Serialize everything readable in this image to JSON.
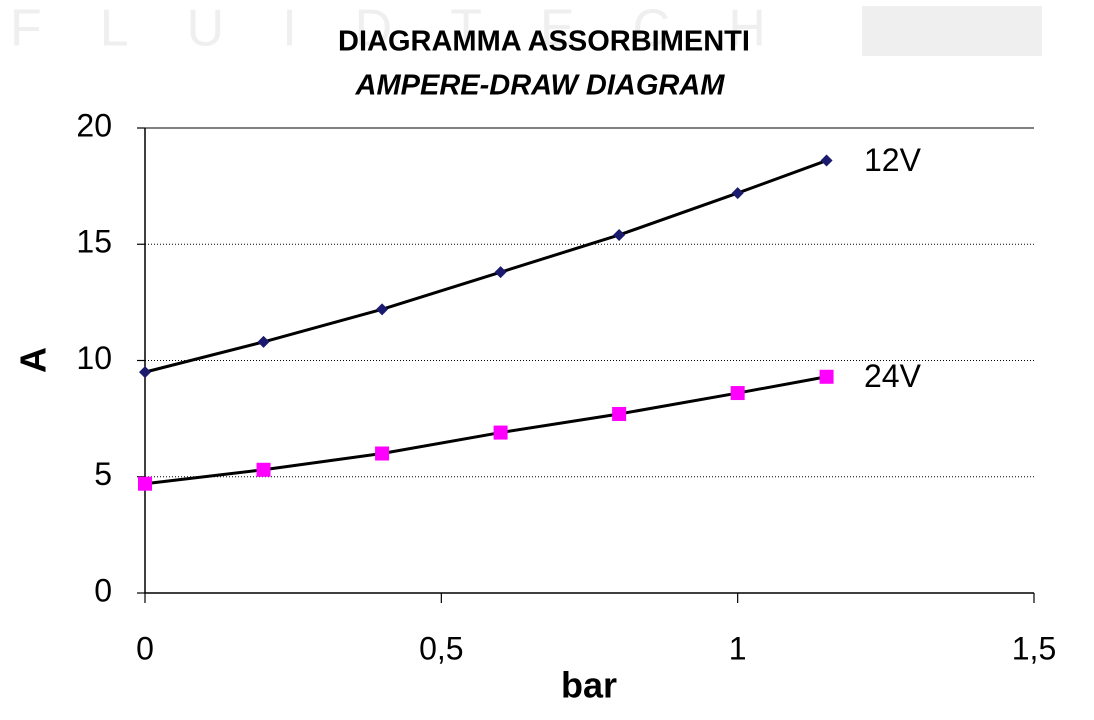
{
  "watermark": "FLUIDTECH",
  "chart_data": {
    "type": "line",
    "title": "DIAGRAMMA ASSORBIMENTI",
    "subtitle": "AMPERE-DRAW DIAGRAM",
    "x_label": "bar",
    "y_label": "A",
    "x": [
      0,
      0.2,
      0.4,
      0.6,
      0.8,
      1,
      1.15
    ],
    "series": [
      {
        "name": "12V",
        "color": "#1a1a6e",
        "marker": "diamond",
        "values": [
          9.5,
          10.8,
          12.2,
          13.8,
          15.4,
          17.2,
          18.6
        ]
      },
      {
        "name": "24V",
        "color": "#ff00ff",
        "marker": "square",
        "values": [
          4.7,
          5.3,
          6.0,
          6.9,
          7.7,
          8.6,
          9.3
        ]
      }
    ],
    "line_color": "#000000",
    "xlim": [
      0,
      1.5
    ],
    "xticks": [
      0,
      {
        "value": 0.5,
        "label": "0,5"
      },
      1,
      {
        "value": 1.5,
        "label": "1,5"
      }
    ],
    "ylim": [
      0,
      20
    ],
    "yticks": [
      0,
      5,
      10,
      15,
      20
    ],
    "grid": true
  }
}
